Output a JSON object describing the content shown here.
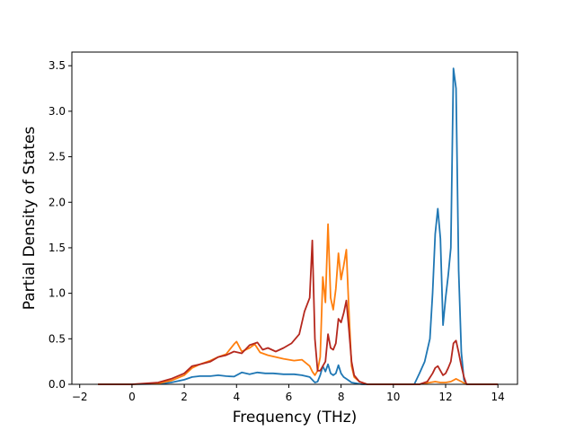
{
  "chart_data": {
    "type": "line",
    "title": "",
    "xlabel": "Frequency (THz)",
    "ylabel": "Partial Density of States",
    "xlim": [
      -2.3,
      14.75
    ],
    "ylim": [
      0,
      3.65
    ],
    "xticks": [
      -2,
      0,
      2,
      4,
      6,
      8,
      10,
      12,
      14
    ],
    "yticks": [
      0.0,
      0.5,
      1.0,
      1.5,
      2.0,
      2.5,
      3.0,
      3.5
    ],
    "xtick_labels": [
      "−2",
      "0",
      "2",
      "4",
      "6",
      "8",
      "10",
      "12",
      "14"
    ],
    "ytick_labels": [
      "0.0",
      "0.5",
      "1.0",
      "1.5",
      "2.0",
      "2.5",
      "3.0",
      "3.5"
    ],
    "grid": false,
    "legend": "none",
    "series": [
      {
        "color": "#1f77b4",
        "x": [
          -1.3,
          0.0,
          1.0,
          1.5,
          2.0,
          2.3,
          2.6,
          3.0,
          3.3,
          3.6,
          3.9,
          4.2,
          4.5,
          4.8,
          5.1,
          5.4,
          5.8,
          6.2,
          6.5,
          6.8,
          7.0,
          7.1,
          7.2,
          7.3,
          7.4,
          7.5,
          7.6,
          7.7,
          7.8,
          7.9,
          8.0,
          8.1,
          8.2,
          8.3,
          8.4,
          8.6,
          8.8,
          9.0,
          10.8,
          11.0,
          11.2,
          11.4,
          11.5,
          11.6,
          11.7,
          11.8,
          11.9,
          12.0,
          12.1,
          12.2,
          12.3,
          12.4,
          12.5,
          12.6,
          12.7,
          12.8,
          13.0,
          14.0
        ],
        "y": [
          0,
          0,
          0.005,
          0.02,
          0.05,
          0.08,
          0.09,
          0.09,
          0.1,
          0.09,
          0.085,
          0.13,
          0.11,
          0.13,
          0.12,
          0.12,
          0.11,
          0.11,
          0.1,
          0.08,
          0.02,
          0.03,
          0.1,
          0.2,
          0.14,
          0.22,
          0.12,
          0.1,
          0.12,
          0.21,
          0.12,
          0.08,
          0.06,
          0.04,
          0.02,
          0.01,
          0.0,
          0.0,
          0.0,
          0.12,
          0.25,
          0.5,
          1.0,
          1.65,
          1.93,
          1.6,
          0.65,
          0.95,
          1.2,
          1.5,
          3.47,
          3.25,
          1.25,
          0.35,
          0.05,
          0.0,
          0.0,
          0.0
        ]
      },
      {
        "color": "#ff7f0e",
        "x": [
          -1.3,
          0.0,
          1.0,
          1.5,
          2.0,
          2.3,
          2.6,
          3.0,
          3.3,
          3.6,
          3.9,
          4.0,
          4.2,
          4.5,
          4.7,
          4.9,
          5.2,
          5.5,
          5.8,
          6.0,
          6.2,
          6.5,
          6.8,
          6.9,
          7.0,
          7.1,
          7.2,
          7.3,
          7.4,
          7.5,
          7.6,
          7.7,
          7.8,
          7.9,
          8.0,
          8.1,
          8.2,
          8.3,
          8.4,
          8.5,
          8.7,
          9.0,
          11.0,
          11.4,
          11.6,
          11.8,
          12.0,
          12.2,
          12.4,
          12.6,
          12.8,
          13.0,
          14.0
        ],
        "y": [
          0,
          0,
          0.01,
          0.04,
          0.1,
          0.18,
          0.22,
          0.26,
          0.3,
          0.33,
          0.44,
          0.47,
          0.36,
          0.4,
          0.44,
          0.35,
          0.32,
          0.3,
          0.28,
          0.27,
          0.26,
          0.27,
          0.2,
          0.14,
          0.1,
          0.15,
          0.3,
          1.18,
          0.9,
          1.76,
          0.95,
          0.82,
          1.05,
          1.44,
          1.15,
          1.3,
          1.48,
          0.8,
          0.2,
          0.08,
          0.03,
          0.0,
          0.0,
          0.02,
          0.03,
          0.02,
          0.02,
          0.03,
          0.06,
          0.03,
          0.0,
          0.0,
          0.0
        ]
      },
      {
        "color": "#b5281e",
        "x": [
          -1.3,
          0.0,
          1.0,
          1.5,
          2.0,
          2.3,
          2.6,
          3.0,
          3.3,
          3.6,
          3.9,
          4.2,
          4.5,
          4.8,
          5.0,
          5.2,
          5.5,
          5.8,
          6.1,
          6.4,
          6.6,
          6.8,
          6.9,
          7.0,
          7.1,
          7.2,
          7.3,
          7.4,
          7.5,
          7.6,
          7.7,
          7.8,
          7.9,
          8.0,
          8.1,
          8.2,
          8.3,
          8.4,
          8.5,
          8.7,
          9.0,
          11.0,
          11.3,
          11.5,
          11.6,
          11.7,
          11.8,
          11.9,
          12.0,
          12.1,
          12.2,
          12.3,
          12.4,
          12.5,
          12.6,
          12.7,
          12.8,
          13.0,
          14.0
        ],
        "y": [
          0,
          0,
          0.02,
          0.06,
          0.12,
          0.2,
          0.22,
          0.25,
          0.3,
          0.32,
          0.36,
          0.34,
          0.43,
          0.46,
          0.38,
          0.4,
          0.36,
          0.4,
          0.45,
          0.55,
          0.8,
          0.95,
          1.58,
          0.5,
          0.15,
          0.15,
          0.2,
          0.25,
          0.55,
          0.4,
          0.38,
          0.45,
          0.72,
          0.68,
          0.78,
          0.92,
          0.6,
          0.25,
          0.1,
          0.03,
          0.0,
          0.0,
          0.03,
          0.12,
          0.18,
          0.2,
          0.15,
          0.1,
          0.12,
          0.18,
          0.25,
          0.45,
          0.48,
          0.35,
          0.2,
          0.08,
          0.0,
          0.0,
          0.0
        ]
      }
    ]
  }
}
